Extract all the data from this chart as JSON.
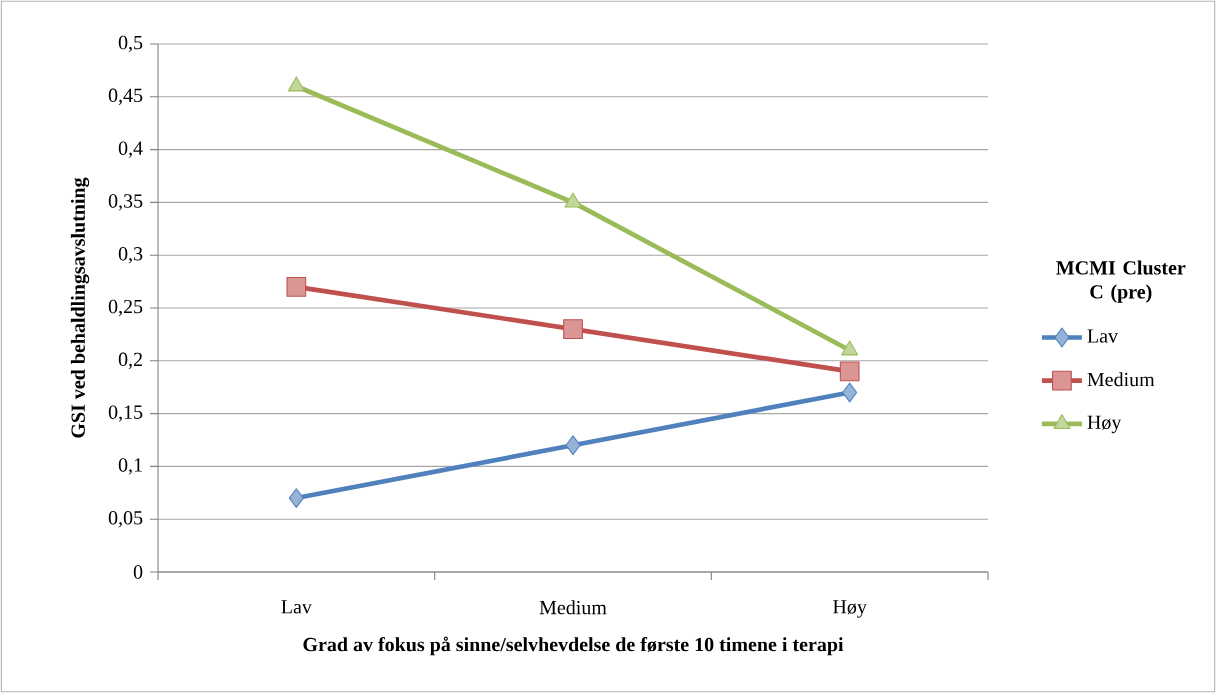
{
  "chart_data": {
    "type": "line",
    "xlabel": "Grad av fokus på sinne/selvhevdelse de første 10 timene i terapi",
    "ylabel": "GSI ved behaldlingsavslutning",
    "legend_title": "MCMI Cluster C (pre)",
    "legend": "right",
    "grid": "y",
    "line_style": "solid",
    "categories": [
      "Lav",
      "Medium",
      "Høy"
    ],
    "series": [
      {
        "name": "Lav",
        "color": "#4f81bd",
        "marker": "diamond",
        "values": [
          0.07,
          0.12,
          0.17
        ]
      },
      {
        "name": "Medium",
        "color": "#c0504d",
        "marker": "square",
        "values": [
          0.27,
          0.23,
          0.19
        ]
      },
      {
        "name": "Høy",
        "color": "#9bbb59",
        "marker": "triangle",
        "values": [
          0.46,
          0.35,
          0.21
        ]
      }
    ],
    "ylim": [
      0,
      0.5
    ],
    "yticks": [
      0,
      {
        "value": 0.05,
        "label": "0,05"
      },
      {
        "value": 0.1,
        "label": "0,1"
      },
      {
        "value": 0.15,
        "label": "0,15"
      },
      {
        "value": 0.2,
        "label": "0,2"
      },
      {
        "value": 0.25,
        "label": "0,25"
      },
      {
        "value": 0.3,
        "label": "0,3"
      },
      {
        "value": 0.35,
        "label": "0,35"
      },
      {
        "value": 0.4,
        "label": "0,4"
      },
      {
        "value": 0.45,
        "label": "0,45"
      },
      {
        "value": 0.5,
        "label": "0,5"
      }
    ]
  }
}
